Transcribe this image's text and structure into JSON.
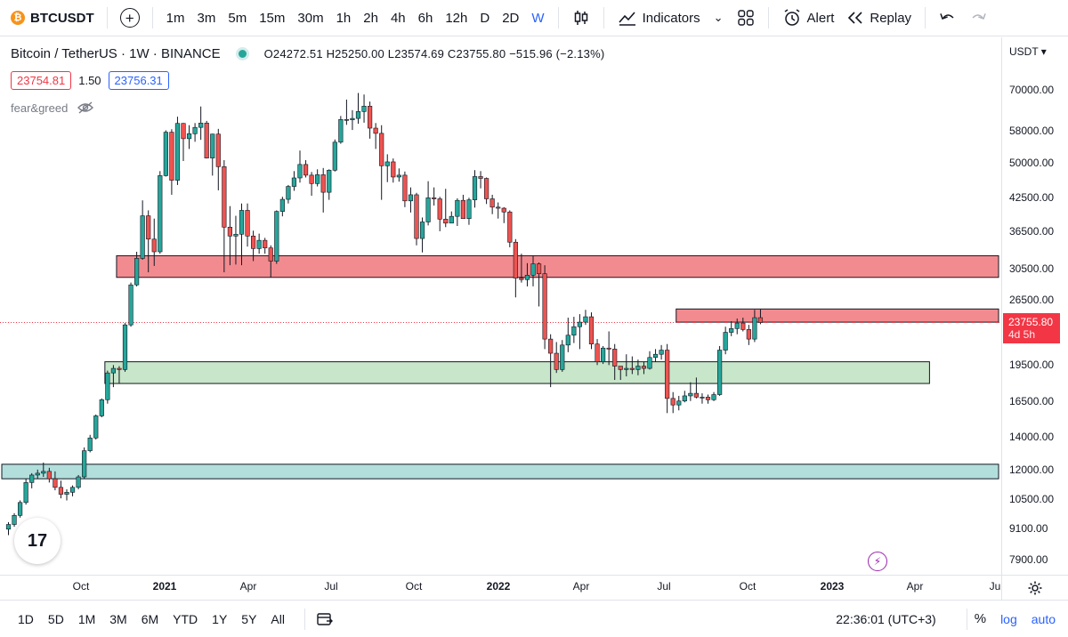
{
  "toolbar": {
    "symbol": "BTCUSDT",
    "logo_glyph": "₿",
    "add_symbol": "+",
    "intervals": [
      "1m",
      "3m",
      "5m",
      "15m",
      "30m",
      "1h",
      "2h",
      "4h",
      "6h",
      "12h",
      "D",
      "2D",
      "W"
    ],
    "active_interval": "W",
    "indicators_label": "Indicators",
    "alert_label": "Alert",
    "replay_label": "Replay"
  },
  "legend": {
    "title": "Bitcoin / TetherUS · 1W · BINANCE",
    "ohlc": "O24272.51 H25250.00 L23574.69 C23755.80 −515.96 (−2.13%)",
    "sell_price": "23754.81",
    "spread": "1.50",
    "buy_price": "23756.31",
    "indicator_name": "fear&greed"
  },
  "price_axis": {
    "currency": "USDT",
    "labels": [
      "70000.00",
      "58000.00",
      "50000.00",
      "42500.00",
      "36500.00",
      "30500.00",
      "26500.00",
      "19500.00",
      "16500.00",
      "14000.00",
      "12000.00",
      "10500.00",
      "9100.00",
      "7900.00"
    ],
    "current_price": "23755.80",
    "countdown": "4d 5h"
  },
  "time_axis": {
    "labels": [
      "Oct",
      "2021",
      "Apr",
      "Jul",
      "Oct",
      "2022",
      "Apr",
      "Jul",
      "Oct",
      "2023",
      "Apr",
      "Ju"
    ],
    "years": [
      "2021",
      "2022",
      "2023"
    ]
  },
  "bottom_bar": {
    "ranges": [
      "1D",
      "5D",
      "1M",
      "3M",
      "6M",
      "YTD",
      "1Y",
      "5Y",
      "All"
    ],
    "clock": "22:36:01 (UTC+3)",
    "percent": "%",
    "log": "log",
    "auto": "auto"
  },
  "branding": {
    "tv_logo": "17"
  },
  "colors": {
    "up": "#26a69a",
    "down": "#ef5350",
    "accent": "#2962ff",
    "red_zone": "#f28b8f",
    "green_zone": "#c8e6c9",
    "teal_zone": "#b2dfdb"
  },
  "chart_data": {
    "type": "candlestick",
    "title": "Bitcoin / TetherUS · 1W · BINANCE",
    "scale": "log",
    "ylim": [
      7500,
      86000
    ],
    "zones": [
      {
        "kind": "resistance",
        "from_week": 19,
        "to_week": 170,
        "low": 29300,
        "high": 32400
      },
      {
        "kind": "resistance",
        "from_week": 115,
        "to_week": 170,
        "low": 23800,
        "high": 25300
      },
      {
        "kind": "support",
        "from_week": 17,
        "to_week": 158,
        "low": 17900,
        "high": 19800
      },
      {
        "kind": "support",
        "from_week": 0,
        "to_week": 170,
        "low": 11500,
        "high": 12300
      }
    ],
    "candles": [
      [
        9100,
        9400,
        8850,
        9300
      ],
      [
        9300,
        9800,
        9200,
        9700
      ],
      [
        9700,
        10400,
        9600,
        10300
      ],
      [
        10300,
        11500,
        10200,
        11300
      ],
      [
        11300,
        11800,
        11000,
        11700
      ],
      [
        11700,
        12000,
        11500,
        11800
      ],
      [
        11800,
        12400,
        11600,
        11900
      ],
      [
        11900,
        12100,
        11300,
        11500
      ],
      [
        11500,
        11900,
        10900,
        11050
      ],
      [
        11050,
        11400,
        10500,
        10700
      ],
      [
        10700,
        10950,
        10400,
        10800
      ],
      [
        10800,
        11150,
        10600,
        11050
      ],
      [
        11050,
        11700,
        10950,
        11600
      ],
      [
        11600,
        13300,
        11500,
        13100
      ],
      [
        13100,
        14100,
        13000,
        13900
      ],
      [
        13900,
        15500,
        13800,
        15400
      ],
      [
        15400,
        16700,
        15300,
        16600
      ],
      [
        16600,
        19000,
        16300,
        18800
      ],
      [
        18800,
        19500,
        17600,
        19200
      ],
      [
        19200,
        19400,
        17900,
        19100
      ],
      [
        19100,
        23700,
        18900,
        23500
      ],
      [
        23500,
        28600,
        23300,
        28300
      ],
      [
        28300,
        33000,
        28100,
        32000
      ],
      [
        32000,
        41900,
        31800,
        39000
      ],
      [
        39000,
        40000,
        30000,
        35000
      ],
      [
        35000,
        38500,
        30900,
        33000
      ],
      [
        33000,
        48000,
        32700,
        47000
      ],
      [
        47000,
        58000,
        46800,
        57500
      ],
      [
        57500,
        58300,
        43000,
        46000
      ],
      [
        46000,
        61800,
        45000,
        59900
      ],
      [
        59900,
        60000,
        50300,
        55800
      ],
      [
        55800,
        59400,
        53200,
        57100
      ],
      [
        57100,
        60000,
        55000,
        58800
      ],
      [
        58800,
        64800,
        55500,
        60000
      ],
      [
        60000,
        60600,
        50900,
        51000
      ],
      [
        51000,
        57100,
        47000,
        57000
      ],
      [
        57000,
        58400,
        43900,
        49000
      ],
      [
        49000,
        50500,
        30000,
        37000
      ],
      [
        37000,
        40800,
        31000,
        35500
      ],
      [
        35500,
        39000,
        31100,
        35800
      ],
      [
        35800,
        41300,
        31000,
        40000
      ],
      [
        40000,
        41300,
        33800,
        35500
      ],
      [
        35500,
        36400,
        31600,
        33500
      ],
      [
        33500,
        35900,
        32700,
        34800
      ],
      [
        34800,
        35200,
        32700,
        33600
      ],
      [
        33600,
        34000,
        29300,
        31600
      ],
      [
        31600,
        40000,
        31200,
        39800
      ],
      [
        39800,
        42600,
        38900,
        42100
      ],
      [
        42100,
        45000,
        41300,
        44700
      ],
      [
        44700,
        48000,
        43800,
        46500
      ],
      [
        46500,
        52800,
        45500,
        49500
      ],
      [
        49500,
        50500,
        46600,
        47100
      ],
      [
        47100,
        47800,
        42800,
        45300
      ],
      [
        45300,
        48400,
        44700,
        47200
      ],
      [
        47200,
        48700,
        39600,
        43500
      ],
      [
        43500,
        48400,
        42000,
        48200
      ],
      [
        48200,
        55600,
        47900,
        54900
      ],
      [
        54900,
        62000,
        54500,
        61000
      ],
      [
        61000,
        66900,
        59500,
        60900
      ],
      [
        60900,
        63700,
        58100,
        61300
      ],
      [
        61300,
        69000,
        59800,
        63300
      ],
      [
        63300,
        68500,
        60100,
        64900
      ],
      [
        64900,
        66300,
        55800,
        58600
      ],
      [
        58600,
        60000,
        53200,
        57200
      ],
      [
        57200,
        59400,
        42000,
        49200
      ],
      [
        49200,
        51900,
        45600,
        50100
      ],
      [
        50100,
        50900,
        45500,
        46700
      ],
      [
        46700,
        48600,
        45700,
        47100
      ],
      [
        47100,
        47900,
        40600,
        41800
      ],
      [
        41800,
        44500,
        39600,
        43000
      ],
      [
        43000,
        43400,
        34000,
        35100
      ],
      [
        35100,
        38700,
        32900,
        37900
      ],
      [
        37900,
        45800,
        37300,
        42400
      ],
      [
        42400,
        44500,
        40900,
        42200
      ],
      [
        42200,
        42600,
        36300,
        38400
      ],
      [
        38400,
        44200,
        37000,
        37700
      ],
      [
        37700,
        39800,
        38200,
        38900
      ],
      [
        38900,
        42300,
        37200,
        41900
      ],
      [
        41900,
        43000,
        38500,
        38500
      ],
      [
        38500,
        42400,
        37400,
        42000
      ],
      [
        42000,
        48200,
        40500,
        46800
      ],
      [
        46800,
        48000,
        44300,
        46400
      ],
      [
        46400,
        46600,
        41200,
        42200
      ],
      [
        42200,
        43000,
        39300,
        40600
      ],
      [
        40600,
        41500,
        38500,
        40400
      ],
      [
        40400,
        40600,
        37700,
        39700
      ],
      [
        39700,
        40000,
        33700,
        34500
      ],
      [
        34500,
        35000,
        26700,
        29200
      ],
      [
        29200,
        32700,
        28600,
        29000
      ],
      [
        29000,
        31300,
        28100,
        29600
      ],
      [
        29600,
        32400,
        28100,
        31200
      ],
      [
        31200,
        31400,
        25600,
        29800
      ],
      [
        29800,
        31000,
        21000,
        22000
      ],
      [
        22000,
        22500,
        17600,
        20600
      ],
      [
        20600,
        21700,
        18800,
        19100
      ],
      [
        19100,
        21900,
        18900,
        21400
      ],
      [
        21400,
        24300,
        20700,
        22400
      ],
      [
        22400,
        24400,
        21600,
        23300
      ],
      [
        23300,
        24700,
        21000,
        23800
      ],
      [
        23800,
        25200,
        23500,
        24400
      ],
      [
        24400,
        24900,
        21000,
        21500
      ],
      [
        21500,
        22000,
        19500,
        19800
      ],
      [
        19800,
        21300,
        19600,
        21100
      ],
      [
        21100,
        22800,
        19500,
        21000
      ],
      [
        21000,
        21500,
        18200,
        19400
      ],
      [
        19400,
        19400,
        18200,
        19100
      ],
      [
        19100,
        20500,
        18500,
        19200
      ],
      [
        19200,
        20300,
        18700,
        19100
      ],
      [
        19100,
        20000,
        18600,
        19400
      ],
      [
        19400,
        19800,
        18700,
        19200
      ],
      [
        19200,
        20800,
        19100,
        20200
      ],
      [
        20200,
        21000,
        19800,
        20500
      ],
      [
        20500,
        21400,
        20000,
        20900
      ],
      [
        20900,
        21500,
        15600,
        16700
      ],
      [
        16700,
        17200,
        15600,
        16200
      ],
      [
        16200,
        16900,
        15800,
        16500
      ],
      [
        16500,
        17300,
        16400,
        16900
      ],
      [
        16900,
        18000,
        16500,
        17100
      ],
      [
        17100,
        18400,
        16700,
        16800
      ],
      [
        16800,
        17100,
        16300,
        16800
      ],
      [
        16800,
        17000,
        16300,
        16600
      ],
      [
        16600,
        17200,
        16500,
        17000
      ],
      [
        17000,
        21300,
        16900,
        20900
      ],
      [
        20900,
        23300,
        20500,
        22700
      ],
      [
        22700,
        23900,
        22300,
        23100
      ],
      [
        23100,
        24200,
        22500,
        23700
      ],
      [
        23700,
        24300,
        22800,
        23000
      ],
      [
        23000,
        23500,
        21400,
        22000
      ],
      [
        22000,
        25200,
        21700,
        24300
      ],
      [
        24300,
        25250,
        23575,
        23756
      ]
    ]
  }
}
